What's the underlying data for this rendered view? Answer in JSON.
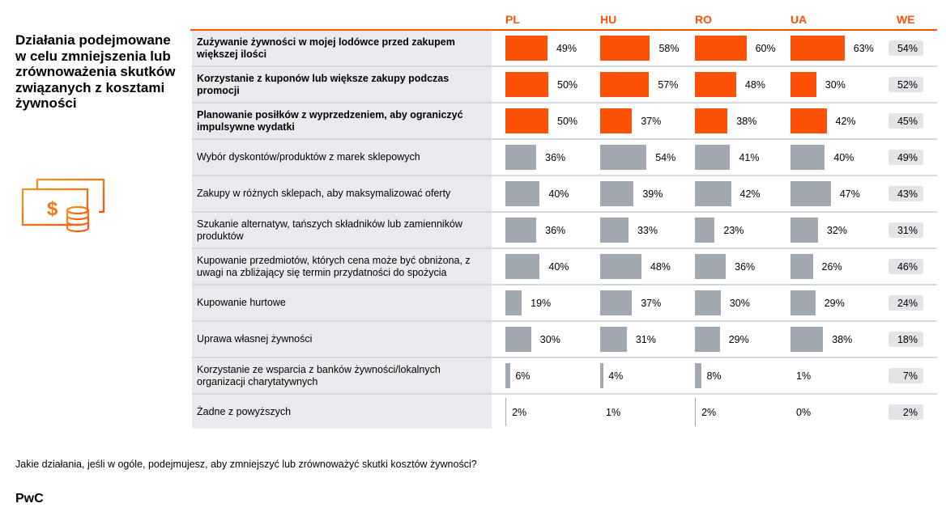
{
  "title": "Działania podejmowane w celu zmniejszenia lub zrównoważenia skutków związanych z kosztami żywności",
  "icon": "money-and-coins-icon",
  "colors": {
    "accent": "#fd5108",
    "highlight_bar": "#fd5108",
    "regular_bar": "#a2a8b1",
    "label_bg": "#e9eaed",
    "we_badge_bg": "#e2e4e8"
  },
  "question": "Jakie działania, jeśli w ogóle, podejmujesz, aby zmniejszyć lub zrównoważyć skutki kosztów żywności?",
  "brand": "PwC",
  "chart_data": {
    "type": "bar",
    "orientation": "horizontal",
    "title": "Działania podejmowane w celu zmniejszenia lub zrównoważenia skutków związanych z kosztami żywności",
    "unit": "%",
    "columns": [
      "PL",
      "HU",
      "RO",
      "UA",
      "WE"
    ],
    "bar_columns": [
      "PL",
      "HU",
      "RO",
      "UA"
    ],
    "summary_column": "WE",
    "rows": [
      {
        "label": "Zużywanie żywności w mojej lodówce przed zakupem większej ilości",
        "highlight": true,
        "values": [
          49,
          58,
          60,
          63
        ],
        "we": 54
      },
      {
        "label": "Korzystanie z kuponów lub większe zakupy podczas promocji",
        "highlight": true,
        "values": [
          50,
          57,
          48,
          30
        ],
        "we": 52
      },
      {
        "label": "Planowanie posiłków z wyprzedzeniem, aby ograniczyć impulsywne wydatki",
        "highlight": true,
        "values": [
          50,
          37,
          38,
          42
        ],
        "we": 45
      },
      {
        "label": "Wybór dyskontów/produktów z marek sklepowych",
        "highlight": false,
        "values": [
          36,
          54,
          41,
          40
        ],
        "we": 49
      },
      {
        "label": "Zakupy w różnych sklepach, aby maksymalizować oferty",
        "highlight": false,
        "values": [
          40,
          39,
          42,
          47
        ],
        "we": 43
      },
      {
        "label": "Szukanie alternatyw, tańszych składników lub zamienników produktów",
        "highlight": false,
        "values": [
          36,
          33,
          23,
          32
        ],
        "we": 31
      },
      {
        "label": "Kupowanie przedmiotów, których cena może być obniżona, z uwagi na zbliżający się termin przydatności do spożycia",
        "highlight": false,
        "values": [
          40,
          48,
          36,
          26
        ],
        "we": 46
      },
      {
        "label": "Kupowanie hurtowe",
        "highlight": false,
        "values": [
          19,
          37,
          30,
          29
        ],
        "we": 24
      },
      {
        "label": "Uprawa własnej żywności",
        "highlight": false,
        "values": [
          30,
          31,
          29,
          38
        ],
        "we": 18
      },
      {
        "label": "Korzystanie ze wsparcia z banków żywności/lokalnych organizacji charytatywnych",
        "highlight": false,
        "values": [
          6,
          4,
          8,
          1
        ],
        "we": 7
      },
      {
        "label": "Żadne z powyższych",
        "highlight": false,
        "values": [
          2,
          1,
          2,
          0
        ],
        "we": 2
      }
    ]
  }
}
